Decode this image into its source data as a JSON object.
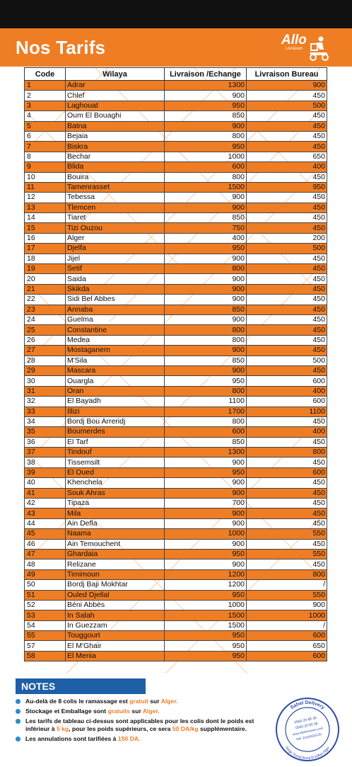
{
  "header": {
    "title": "Nos Tarifs",
    "logo_text": "Allo",
    "logo_sub": "Livraison"
  },
  "table": {
    "columns": [
      "Code",
      "Wilaya",
      "Livraison /Echange",
      "Livraison Bureau"
    ],
    "rows": [
      [
        "1",
        "Adrar",
        "1300",
        "900"
      ],
      [
        "2",
        "Chlef",
        "900",
        "450"
      ],
      [
        "3",
        "Laghouat",
        "950",
        "500"
      ],
      [
        "4",
        "Oum El Bouaghi",
        "850",
        "450"
      ],
      [
        "5",
        "Batna",
        "900",
        "450"
      ],
      [
        "6",
        "Bejaia",
        "800",
        "450"
      ],
      [
        "7",
        "Biskra",
        "950",
        "450"
      ],
      [
        "8",
        "Bechar",
        "1000",
        "650"
      ],
      [
        "9",
        "Blida",
        "600",
        "400"
      ],
      [
        "10",
        "Bouira",
        "800",
        "450"
      ],
      [
        "11",
        "Tamenrasset",
        "1500",
        "950"
      ],
      [
        "12",
        "Tebessa",
        "900",
        "450"
      ],
      [
        "13",
        "Tlemcen",
        "900",
        "450"
      ],
      [
        "14",
        "Tiaret",
        "850",
        "450"
      ],
      [
        "15",
        "Tizi Ouzou",
        "750",
        "450"
      ],
      [
        "16",
        "Alger",
        "400",
        "200"
      ],
      [
        "17",
        "Djelfa",
        "950",
        "500"
      ],
      [
        "18",
        "Jijel",
        "900",
        "450"
      ],
      [
        "19",
        "Setif",
        "800",
        "450"
      ],
      [
        "20",
        "Saida",
        "900",
        "450"
      ],
      [
        "21",
        "Skikda",
        "900",
        "450"
      ],
      [
        "22",
        "Sidi Bel Abbes",
        "900",
        "450"
      ],
      [
        "23",
        "Annaba",
        "850",
        "450"
      ],
      [
        "24",
        "Guelma",
        "900",
        "450"
      ],
      [
        "25",
        "Constantine",
        "800",
        "450"
      ],
      [
        "26",
        "Medea",
        "800",
        "450"
      ],
      [
        "27",
        "Mostaganem",
        "900",
        "450"
      ],
      [
        "28",
        "M'Sila",
        "850",
        "500"
      ],
      [
        "29",
        "Mascara",
        "900",
        "450"
      ],
      [
        "30",
        "Ouargla",
        "950",
        "600"
      ],
      [
        "31",
        "Oran",
        "800",
        "400"
      ],
      [
        "32",
        "El Bayadh",
        "1100",
        "600"
      ],
      [
        "33",
        "Illizi",
        "1700",
        "1100"
      ],
      [
        "34",
        "Bordj Bou Arreridj",
        "800",
        "450"
      ],
      [
        "35",
        "Boumerdes",
        "600",
        "400"
      ],
      [
        "36",
        "El Tarf",
        "850",
        "450"
      ],
      [
        "37",
        "Tindouf",
        "1300",
        "800"
      ],
      [
        "38",
        "Tissemsilt",
        "900",
        "450"
      ],
      [
        "39",
        "El Oued",
        "950",
        "600"
      ],
      [
        "40",
        "Khenchela",
        "900",
        "450"
      ],
      [
        "41",
        "Souk Ahras",
        "900",
        "450"
      ],
      [
        "42",
        "Tipaza",
        "700",
        "450"
      ],
      [
        "43",
        "Mila",
        "900",
        "450"
      ],
      [
        "44",
        "Ain Defla",
        "900",
        "450"
      ],
      [
        "45",
        "Naama",
        "1000",
        "550"
      ],
      [
        "46",
        "Ain Temouchent",
        "900",
        "450"
      ],
      [
        "47",
        "Ghardaia",
        "950",
        "550"
      ],
      [
        "48",
        "Relizane",
        "900",
        "450"
      ],
      [
        "49",
        "Timimoun",
        "1200",
        "800"
      ],
      [
        "50",
        "Bordj Baji Mokhtar",
        "1200",
        "/"
      ],
      [
        "51",
        "Ouled Djellal",
        "950",
        "550"
      ],
      [
        "52",
        "Béni Abbès",
        "1000",
        "900"
      ],
      [
        "53",
        "In Salah",
        "1500",
        "1000"
      ],
      [
        "54",
        "In Guezzam",
        "1500",
        "/"
      ],
      [
        "55",
        "Touggourt",
        "950",
        "600"
      ],
      [
        "57",
        "El M'Ghair",
        "950",
        "650"
      ],
      [
        "58",
        "El Menia",
        "950",
        "600"
      ]
    ]
  },
  "notes": {
    "heading": "NOTES",
    "items": [
      [
        {
          "t": "Au-delà de 8 colis le ramassage est "
        },
        {
          "t": "gratuit",
          "hl": true
        },
        {
          "t": " sur "
        },
        {
          "t": "Alger.",
          "hl": true
        }
      ],
      [
        {
          "t": "Stockage et Emballage sont "
        },
        {
          "t": "gratuits",
          "hl": true
        },
        {
          "t": " sur "
        },
        {
          "t": "Alger.",
          "hl": true
        }
      ],
      [
        {
          "t": "Les tarifs de tableau ci-dessus sont applicables pour les colis dont le poids est inférieur à "
        },
        {
          "t": "5 kg",
          "hl": true
        },
        {
          "t": ", pour les poids supérieurs, ce sera "
        },
        {
          "t": "50  DA/kg",
          "hl": true
        },
        {
          "t": " supplémentaire."
        }
      ],
      [
        {
          "t": "Les annulations sont tarifiées à "
        },
        {
          "t": "150 DA.",
          "hl": true
        }
      ]
    ]
  },
  "stamp": {
    "top_text": "Sahel Delivery",
    "phone1": "0560 20 85 35",
    "phone2": "0563 20 85 36",
    "web": "www.alloliivraison.com",
    "nif": "NIF 21160500135",
    "bottom_text": "Siege Social Bordj El Kiffan Alger"
  },
  "colors": {
    "accent": "#ef7d24",
    "notes_blue": "#1f5fa8",
    "bullet_blue": "#2a8ad3",
    "stamp_blue": "#2e4da8"
  }
}
